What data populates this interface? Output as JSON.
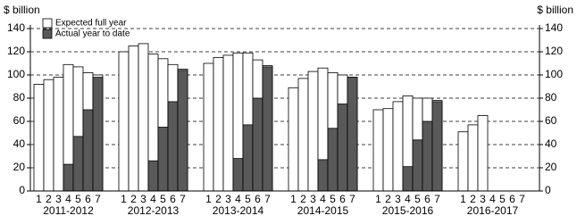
{
  "chart_data": {
    "type": "grouped-overlay-bar",
    "y_label": "$ billion",
    "groups": [
      "2011-2012",
      "2012-2013",
      "2013-2014",
      "2014-2015",
      "2015-2016",
      "2016-2017"
    ],
    "positions": [
      "1",
      "2",
      "3",
      "4",
      "5",
      "6",
      "7"
    ],
    "series": [
      {
        "name": "Expected full year",
        "color": "#ffffff",
        "values": [
          [
            92,
            96,
            98,
            109,
            107,
            102,
            100
          ],
          [
            120,
            125,
            127,
            118,
            114,
            109,
            105
          ],
          [
            110,
            115,
            117,
            119,
            119,
            113,
            108
          ],
          [
            89,
            97,
            103,
            106,
            102,
            100,
            98
          ],
          [
            70,
            71,
            77,
            82,
            80,
            80,
            78
          ],
          [
            51,
            57,
            65,
            null,
            null,
            null,
            null
          ]
        ]
      },
      {
        "name": "Actual year to date",
        "color": "#595959",
        "values": [
          [
            null,
            null,
            null,
            23,
            47,
            70,
            98
          ],
          [
            null,
            null,
            null,
            26,
            55,
            77,
            104
          ],
          [
            null,
            null,
            null,
            28,
            57,
            80,
            107
          ],
          [
            null,
            null,
            null,
            27,
            54,
            75,
            98
          ],
          [
            null,
            null,
            null,
            21,
            44,
            60,
            77
          ],
          [
            null,
            null,
            null,
            null,
            null,
            null,
            null
          ]
        ]
      }
    ],
    "ylim": [
      0,
      140
    ],
    "yticks": [
      0,
      20,
      40,
      60,
      80,
      100,
      120,
      140
    ],
    "grid": true,
    "legend": "top-left"
  }
}
